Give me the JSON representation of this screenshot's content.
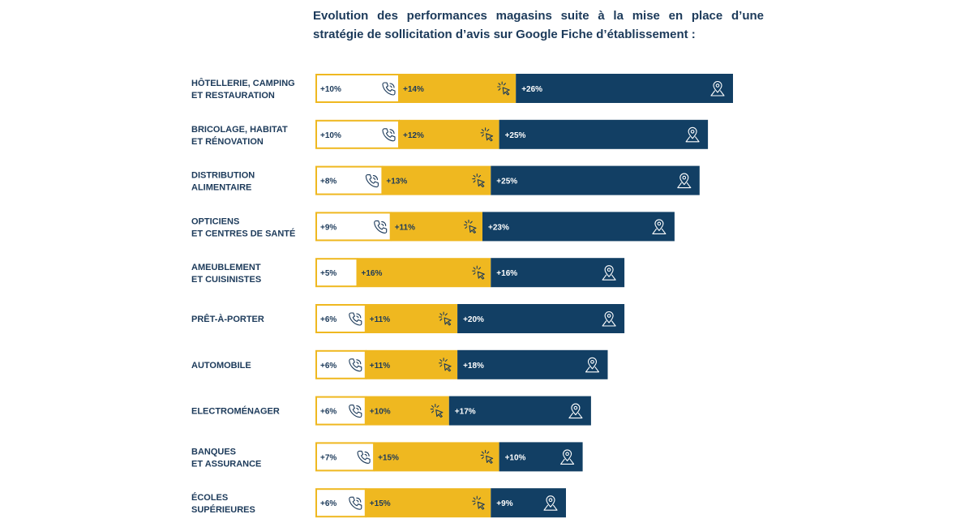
{
  "title_line1": "Evolution des performances magasins suite à la mise en place d’une",
  "title_line2": "stratégie de sollicitation d’avis sur Google Fiche d’établissement :",
  "colors": {
    "calls": "#ffffff",
    "calls_border": "#efb820",
    "clicks": "#efb820",
    "directions": "#123f64",
    "text_dark": "#1c3a5a"
  },
  "icons": [
    "phone-icon",
    "cursor-click-icon",
    "map-pin-icon"
  ],
  "chart_data": {
    "type": "bar",
    "stacked": true,
    "orientation": "horizontal",
    "categories": [
      [
        "HÔTELLERIE, CAMPING",
        "ET RESTAURATION"
      ],
      [
        "BRICOLAGE, HABITAT",
        "ET RÉNOVATION"
      ],
      [
        "DISTRIBUTION",
        "ALIMENTAIRE"
      ],
      [
        "OPTICIENS",
        "ET CENTRES DE SANTÉ"
      ],
      [
        "AMEUBLEMENT",
        "ET CUISINISTES"
      ],
      [
        "PRÊT-À-PORTER"
      ],
      [
        "AUTOMOBILE"
      ],
      [
        "ELECTROMÉNAGER"
      ],
      [
        "BANQUES",
        "ET ASSURANCE"
      ],
      [
        "ÉCOLES",
        "SUPÉRIEURES"
      ]
    ],
    "series": [
      {
        "values": [
          10,
          10,
          8,
          9,
          5,
          6,
          6,
          6,
          7,
          6
        ],
        "labels": [
          "+10%",
          "+10%",
          "+8%",
          "+9%",
          "+5%",
          "+6%",
          "+6%",
          "+6%",
          "+7%",
          "+6%"
        ]
      },
      {
        "values": [
          14,
          12,
          13,
          11,
          16,
          11,
          11,
          10,
          15,
          15
        ],
        "labels": [
          "+14%",
          "+12%",
          "+13%",
          "+11%",
          "+16%",
          "+11%",
          "+11%",
          "+10%",
          "+15%",
          "+15%"
        ]
      },
      {
        "values": [
          26,
          25,
          25,
          23,
          16,
          20,
          18,
          17,
          10,
          9
        ],
        "labels": [
          "+26%",
          "+25%",
          "+25%",
          "+23%",
          "+16%",
          "+20%",
          "+18%",
          "+17%",
          "+10%",
          "+9%"
        ]
      }
    ],
    "phone_icon_shown": [
      true,
      true,
      true,
      true,
      false,
      true,
      true,
      true,
      true,
      true
    ]
  }
}
